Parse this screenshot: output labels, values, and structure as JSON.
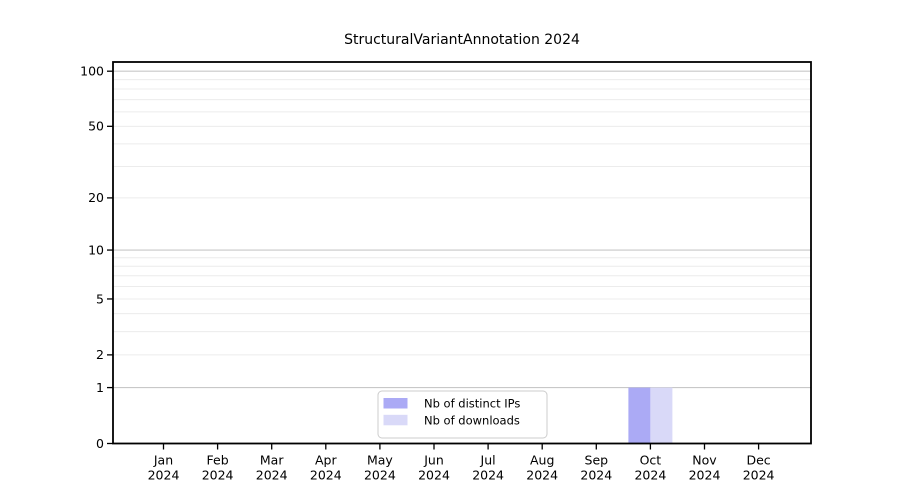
{
  "chart_data": {
    "type": "bar",
    "title": "StructuralVariantAnnotation 2024",
    "xlabel": "",
    "ylabel": "",
    "categories": [
      "Jan 2024",
      "Feb 2024",
      "Mar 2024",
      "Apr 2024",
      "May 2024",
      "Jun 2024",
      "Jul 2024",
      "Aug 2024",
      "Sep 2024",
      "Oct 2024",
      "Nov 2024",
      "Dec 2024"
    ],
    "series": [
      {
        "name": "Nb of distinct IPs",
        "color": "#abaaf5",
        "values": [
          0,
          0,
          0,
          0,
          0,
          0,
          0,
          0,
          0,
          1,
          0,
          0
        ]
      },
      {
        "name": "Nb of downloads",
        "color": "#d9d9f8",
        "values": [
          0,
          0,
          0,
          0,
          0,
          0,
          0,
          0,
          0,
          1,
          0,
          0
        ]
      }
    ],
    "y_axis": {
      "scale": "log1p",
      "tick_values": [
        0,
        1,
        2,
        5,
        10,
        20,
        50,
        100
      ],
      "major_gridlines": [
        1,
        10,
        100
      ],
      "minor_gridlines": [
        2,
        3,
        4,
        5,
        6,
        7,
        8,
        9,
        20,
        30,
        40,
        50,
        60,
        70,
        80,
        90
      ],
      "range": [
        0,
        115
      ]
    },
    "legend": {
      "position": "lower-center",
      "entries": [
        "Nb of distinct IPs",
        "Nb of downloads"
      ]
    },
    "grid": true
  },
  "colors": {
    "major_grid": "#c8c8c8",
    "minor_grid": "#ececec",
    "spine": "#000000",
    "tick": "#000000",
    "legend_border": "#cccccc",
    "legend_background": "#ffffff",
    "figure_background": "#ffffff"
  }
}
